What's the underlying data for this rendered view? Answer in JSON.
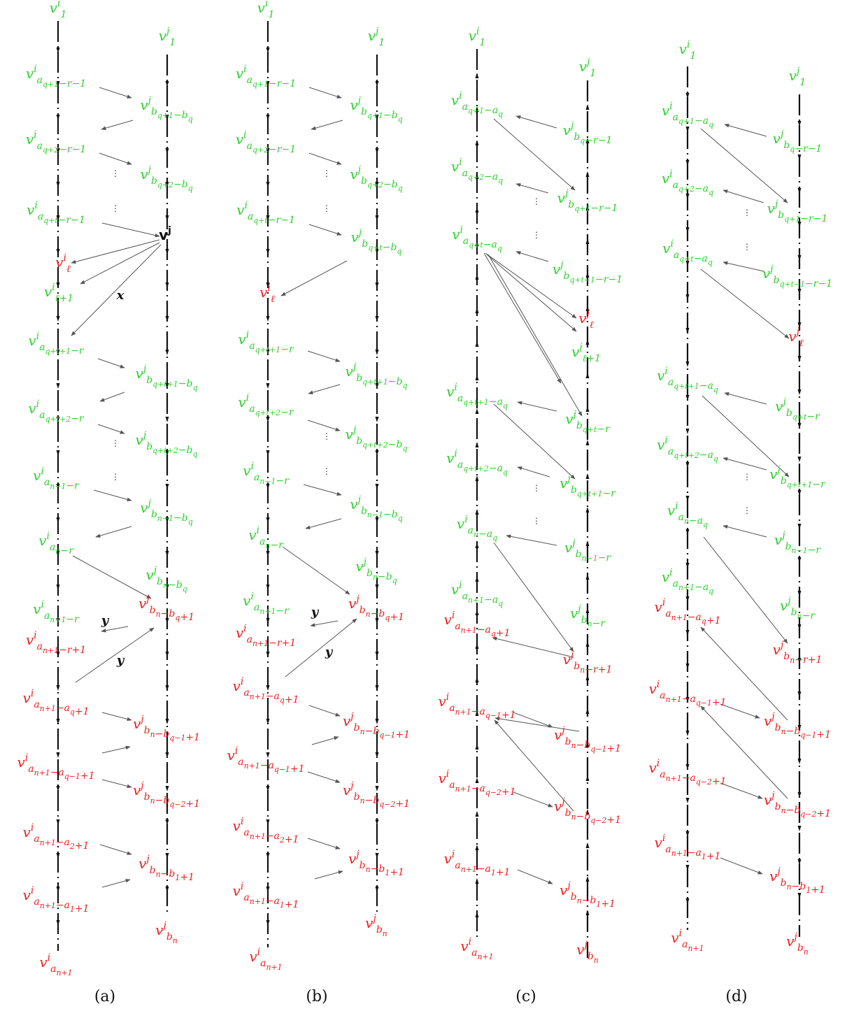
{
  "colors": {
    "green": "#2fd12f",
    "red": "#ee2020",
    "black": "#111111",
    "arrow": "#555555"
  },
  "panels": [
    {
      "caption": "(a)",
      "labels": [
        {
          "base": "v",
          "sup": "i",
          "sub": "1",
          "color": "green"
        },
        {
          "base": "v",
          "sup": "j",
          "sub": "1",
          "color": "green"
        },
        {
          "base": "v",
          "sup": "i",
          "sub": "a_{q+1}−r−1",
          "color": "green"
        },
        {
          "base": "v",
          "sup": "j",
          "sub": "b_{q+1}−b_q",
          "color": "green"
        },
        {
          "base": "v",
          "sup": "i",
          "sub": "a_{q+2}−r−1",
          "color": "green"
        },
        {
          "base": "v",
          "sup": "j",
          "sub": "b_{q+2}−b_q",
          "color": "green"
        },
        {
          "base": "v",
          "sup": "i",
          "sub": "a_{q+t}−r−1",
          "color": "green"
        },
        {
          "base": "v",
          "sup": "j",
          "sub": "",
          "color": "black",
          "bold": true
        },
        {
          "base": "v",
          "sup": "i",
          "sub": "ℓ",
          "color": "red"
        },
        {
          "base": "v",
          "sup": "i",
          "sub": "ℓ+1",
          "color": "green"
        },
        {
          "base": "v",
          "sup": "i",
          "sub": "a_{q+t+1}−r",
          "color": "green"
        },
        {
          "base": "v",
          "sup": "j",
          "sub": "b_{q+t+1}−b_q",
          "color": "green"
        },
        {
          "base": "v",
          "sup": "i",
          "sub": "a_{q+t+2}−r",
          "color": "green"
        },
        {
          "base": "v",
          "sup": "j",
          "sub": "b_{q+t+2}−b_q",
          "color": "green"
        },
        {
          "base": "v",
          "sup": "i",
          "sub": "a_{n−1}−r",
          "color": "green"
        },
        {
          "base": "v",
          "sup": "j",
          "sub": "b_{n−1}−b_q",
          "color": "green"
        },
        {
          "base": "v",
          "sup": "i",
          "sub": "a_n−r",
          "color": "green"
        },
        {
          "base": "v",
          "sup": "j",
          "sub": "b_n−b_q",
          "color": "green"
        },
        {
          "base": "v",
          "sup": "i",
          "sub": "a_{n+1}−r",
          "color": "green"
        },
        {
          "base": "v",
          "sup": "j",
          "sub": "b_n−b_q+1",
          "color": "red"
        },
        {
          "base": "v",
          "sup": "i",
          "sub": "a_{n+1}−r+1",
          "color": "red"
        },
        {
          "base": "v",
          "sup": "i",
          "sub": "a_{n+1}−a_q+1",
          "color": "red"
        },
        {
          "base": "v",
          "sup": "j",
          "sub": "b_n−b_{q−1}+1",
          "color": "red"
        },
        {
          "base": "v",
          "sup": "i",
          "sub": "a_{n+1}−a_{q−1}+1",
          "color": "red"
        },
        {
          "base": "v",
          "sup": "j",
          "sub": "b_n−b_{q−2}+1",
          "color": "red"
        },
        {
          "base": "v",
          "sup": "i",
          "sub": "a_{n+1}−a_2+1",
          "color": "red"
        },
        {
          "base": "v",
          "sup": "j",
          "sub": "b_n−b_1+1",
          "color": "red"
        },
        {
          "base": "v",
          "sup": "i",
          "sub": "a_{n+1}−a_1+1",
          "color": "red"
        },
        {
          "base": "v",
          "sup": "j",
          "sub": "b_n",
          "color": "red"
        },
        {
          "base": "v",
          "sup": "i",
          "sub": "a_{n+1}",
          "color": "red"
        }
      ],
      "edge_labels": [
        "x",
        "y",
        "y"
      ]
    },
    {
      "caption": "(b)",
      "labels": [
        {
          "base": "v",
          "sup": "i",
          "sub": "1",
          "color": "green"
        },
        {
          "base": "v",
          "sup": "j",
          "sub": "1",
          "color": "green"
        },
        {
          "base": "v",
          "sup": "i",
          "sub": "a_{q+1}−r−1",
          "color": "green"
        },
        {
          "base": "v",
          "sup": "j",
          "sub": "b_{q+1}−b_q",
          "color": "green"
        },
        {
          "base": "v",
          "sup": "i",
          "sub": "a_{q+2}−r−1",
          "color": "green"
        },
        {
          "base": "v",
          "sup": "j",
          "sub": "b_{q+2}−b_q",
          "color": "green"
        },
        {
          "base": "v",
          "sup": "i",
          "sub": "a_{q+t}−r−1",
          "color": "green"
        },
        {
          "base": "v",
          "sup": "j",
          "sub": "b_{q+t}−b_q",
          "color": "green"
        },
        {
          "base": "v",
          "sup": "i",
          "sub": "ℓ",
          "color": "red"
        },
        {
          "base": "v",
          "sup": "i",
          "sub": "a_{q+t+1}−r",
          "color": "green"
        },
        {
          "base": "v",
          "sup": "j",
          "sub": "b_{q+t+1}−b_q",
          "color": "green"
        },
        {
          "base": "v",
          "sup": "i",
          "sub": "a_{q+t+2}−r",
          "color": "green"
        },
        {
          "base": "v",
          "sup": "j",
          "sub": "b_{q+t+2}−b_q",
          "color": "green"
        },
        {
          "base": "v",
          "sup": "i",
          "sub": "a_{n−1}−r",
          "color": "green"
        },
        {
          "base": "v",
          "sup": "j",
          "sub": "b_{n−1}−b_q",
          "color": "green"
        },
        {
          "base": "v",
          "sup": "i",
          "sub": "a_n−r",
          "color": "green"
        },
        {
          "base": "v",
          "sup": "j",
          "sub": "b_n−b_q",
          "color": "green"
        },
        {
          "base": "v",
          "sup": "i",
          "sub": "a_{n+1}−r",
          "color": "green"
        },
        {
          "base": "v",
          "sup": "j",
          "sub": "b_n−b_q+1",
          "color": "red"
        },
        {
          "base": "v",
          "sup": "i",
          "sub": "a_{n+1}−r+1",
          "color": "red"
        },
        {
          "base": "v",
          "sup": "i",
          "sub": "a_{n+1}−a_q+1",
          "color": "red"
        },
        {
          "base": "v",
          "sup": "j",
          "sub": "b_n−b_{q−1}+1",
          "color": "red"
        },
        {
          "base": "v",
          "sup": "i",
          "sub": "a_{n+1}−a_{q−1}+1",
          "color": "red"
        },
        {
          "base": "v",
          "sup": "j",
          "sub": "b_n−b_{q−2}+1",
          "color": "red"
        },
        {
          "base": "v",
          "sup": "i",
          "sub": "a_{n+1}−a_2+1",
          "color": "red"
        },
        {
          "base": "v",
          "sup": "j",
          "sub": "b_n−b_1+1",
          "color": "red"
        },
        {
          "base": "v",
          "sup": "i",
          "sub": "a_{n+1}−a_1+1",
          "color": "red"
        },
        {
          "base": "v",
          "sup": "j",
          "sub": "b_n",
          "color": "red"
        },
        {
          "base": "v",
          "sup": "i",
          "sub": "a_{n+1}",
          "color": "red"
        }
      ],
      "edge_labels": [
        "y",
        "y"
      ]
    },
    {
      "caption": "(c)",
      "labels": [
        {
          "base": "v",
          "sup": "i",
          "sub": "1",
          "color": "green"
        },
        {
          "base": "v",
          "sup": "j",
          "sub": "1",
          "color": "green"
        },
        {
          "base": "v",
          "sup": "i",
          "sub": "a_{q+1}−a_q",
          "color": "green"
        },
        {
          "base": "v",
          "sup": "j",
          "sub": "b_q−r−1",
          "color": "green"
        },
        {
          "base": "v",
          "sup": "i",
          "sub": "a_{q+2}−a_q",
          "color": "green"
        },
        {
          "base": "v",
          "sup": "j",
          "sub": "b_{q+1}−r−1",
          "color": "green"
        },
        {
          "base": "v",
          "sup": "i",
          "sub": "a_{q+t}−a_q",
          "color": "green"
        },
        {
          "base": "v",
          "sup": "j",
          "sub": "b_{q+t−1}−r−1",
          "color": "green"
        },
        {
          "base": "v",
          "sup": "j",
          "sub": "ℓ",
          "color": "red"
        },
        {
          "base": "v",
          "sup": "j",
          "sub": "ℓ+1",
          "color": "green"
        },
        {
          "base": "v",
          "sup": "i",
          "sub": "a_{q+t+1}−a_q",
          "color": "green"
        },
        {
          "base": "v",
          "sup": "j",
          "sub": "b_{q+t}−r",
          "color": "green"
        },
        {
          "base": "v",
          "sup": "i",
          "sub": "a_{q+t+2}−a_q",
          "color": "green"
        },
        {
          "base": "v",
          "sup": "j",
          "sub": "b_{q+t+1}−r",
          "color": "green"
        },
        {
          "base": "v",
          "sup": "i",
          "sub": "a_n−a_q",
          "color": "green"
        },
        {
          "base": "v",
          "sup": "j",
          "sub": "b_{n−1}−r",
          "color": "green"
        },
        {
          "base": "v",
          "sup": "i",
          "sub": "a_{n+1}−a_q",
          "color": "green"
        },
        {
          "base": "v",
          "sup": "j",
          "sub": "b_n−r",
          "color": "green"
        },
        {
          "base": "v",
          "sup": "i",
          "sub": "a_{n+1}−a_q+1",
          "color": "red"
        },
        {
          "base": "v",
          "sup": "j",
          "sub": "b_n−r+1",
          "color": "red"
        },
        {
          "base": "v",
          "sup": "i",
          "sub": "a_{n+1}−a_{q−1}+1",
          "color": "red"
        },
        {
          "base": "v",
          "sup": "j",
          "sub": "b_n−b_{q−1}+1",
          "color": "red"
        },
        {
          "base": "v",
          "sup": "i",
          "sub": "a_{n+1}−a_{q−2}+1",
          "color": "red"
        },
        {
          "base": "v",
          "sup": "j",
          "sub": "b_n−b_{q−2}+1",
          "color": "red"
        },
        {
          "base": "v",
          "sup": "i",
          "sub": "a_{n+1}−a_1+1",
          "color": "red"
        },
        {
          "base": "v",
          "sup": "j",
          "sub": "b_n−b_1+1",
          "color": "red"
        },
        {
          "base": "v",
          "sup": "i",
          "sub": "a_{n+1}",
          "color": "red"
        },
        {
          "base": "v",
          "sup": "j",
          "sub": "b_n",
          "color": "red"
        }
      ],
      "edge_labels": []
    },
    {
      "caption": "(d)",
      "labels": [
        {
          "base": "v",
          "sup": "i",
          "sub": "1",
          "color": "green"
        },
        {
          "base": "v",
          "sup": "j",
          "sub": "1",
          "color": "green"
        },
        {
          "base": "v",
          "sup": "i",
          "sub": "a_{q+1}−a_q",
          "color": "green"
        },
        {
          "base": "v",
          "sup": "j",
          "sub": "b_q−r−1",
          "color": "green"
        },
        {
          "base": "v",
          "sup": "i",
          "sub": "a_{q+2}−a_q",
          "color": "green"
        },
        {
          "base": "v",
          "sup": "j",
          "sub": "b_{q+1}−r−1",
          "color": "green"
        },
        {
          "base": "v",
          "sup": "i",
          "sub": "a_{q+t}−a_q",
          "color": "green"
        },
        {
          "base": "v",
          "sup": "j",
          "sub": "b_{q+t−1}−r−1",
          "color": "green"
        },
        {
          "base": "v",
          "sup": "j",
          "sub": "ℓ",
          "color": "red"
        },
        {
          "base": "v",
          "sup": "i",
          "sub": "a_{q+t+1}−a_q",
          "color": "green"
        },
        {
          "base": "v",
          "sup": "j",
          "sub": "b_{q+t}−r",
          "color": "green"
        },
        {
          "base": "v",
          "sup": "i",
          "sub": "a_{q+t+2}−a_q",
          "color": "green"
        },
        {
          "base": "v",
          "sup": "j",
          "sub": "b_{q+t+1}−r",
          "color": "green"
        },
        {
          "base": "v",
          "sup": "i",
          "sub": "a_n−a_q",
          "color": "green"
        },
        {
          "base": "v",
          "sup": "j",
          "sub": "b_{n−1}−r",
          "color": "green"
        },
        {
          "base": "v",
          "sup": "i",
          "sub": "a_{n+1}−a_q",
          "color": "green"
        },
        {
          "base": "v",
          "sup": "j",
          "sub": "b_n−r",
          "color": "green"
        },
        {
          "base": "v",
          "sup": "i",
          "sub": "a_{n+1}−a_q+1",
          "color": "red"
        },
        {
          "base": "v",
          "sup": "j",
          "sub": "b_n−r+1",
          "color": "red"
        },
        {
          "base": "v",
          "sup": "i",
          "sub": "a_{n+1}−a_{q−1}+1",
          "color": "red"
        },
        {
          "base": "v",
          "sup": "j",
          "sub": "b_n−b_{q−1}+1",
          "color": "red"
        },
        {
          "base": "v",
          "sup": "i",
          "sub": "a_{n+1}−a_{q−2}+1",
          "color": "red"
        },
        {
          "base": "v",
          "sup": "j",
          "sub": "b_n−b_{q−2}+1",
          "color": "red"
        },
        {
          "base": "v",
          "sup": "i",
          "sub": "a_{n+1}−a_1+1",
          "color": "red"
        },
        {
          "base": "v",
          "sup": "j",
          "sub": "b_n−b_1+1",
          "color": "red"
        },
        {
          "base": "v",
          "sup": "i",
          "sub": "a_{n+1}",
          "color": "red"
        },
        {
          "base": "v",
          "sup": "j",
          "sub": "b_n",
          "color": "red"
        }
      ],
      "edge_labels": []
    }
  ]
}
